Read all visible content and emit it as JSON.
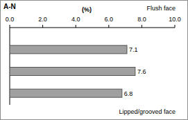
{
  "chart_data": {
    "type": "bar",
    "orientation": "horizontal",
    "title": "A-N",
    "xlabel": "(%)",
    "annotations": [
      "Flush face",
      "Lipped/grooved face"
    ],
    "categories": [
      null,
      null,
      null
    ],
    "values": [
      7.1,
      7.6,
      6.8
    ],
    "color": "#a0a0a0",
    "xlim": [
      0,
      10
    ],
    "xticks": [
      {
        "value": 0,
        "label": "0.0"
      },
      {
        "value": 2,
        "label": "2.0"
      },
      {
        "value": 4,
        "label": "4.0"
      },
      {
        "value": 6,
        "label": "6.0"
      },
      {
        "value": 8,
        "label": "8.0"
      },
      {
        "value": 10,
        "label": "10.0"
      }
    ],
    "data_labels": true,
    "grid": false
  }
}
